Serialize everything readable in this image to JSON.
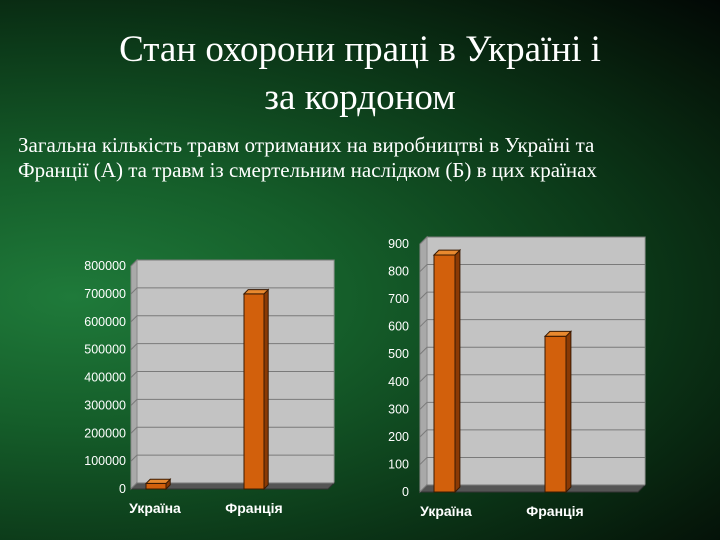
{
  "slide": {
    "title_line1": "Стан охорони праці в Україні і",
    "title_line2": "за кордоном",
    "subtitle_line1": "Загальна кількість травм отриманих на виробництві в Україні та",
    "subtitle_line2": "Франції (А) та травм із смертельним наслідком (Б) в цих країнах"
  },
  "colors": {
    "bar": "#d2600c",
    "bar_top": "#e8892f",
    "bar_side": "#8a3a05",
    "wall": "#c3c3c3",
    "floor": "#555555"
  },
  "chart_data": [
    {
      "type": "bar",
      "categories": [
        "Україна",
        "Франція"
      ],
      "values": [
        20000,
        700000
      ],
      "ylim": [
        0,
        800000
      ],
      "yticks": [
        "0",
        "100000",
        "200000",
        "300000",
        "400000",
        "500000",
        "600000",
        "700000",
        "800000"
      ],
      "title": "",
      "xlabel": "",
      "ylabel": "",
      "grid": true,
      "legend": "none"
    },
    {
      "type": "bar",
      "categories": [
        "Україна",
        "Франція"
      ],
      "values": [
        860,
        565
      ],
      "ylim": [
        0,
        900
      ],
      "yticks": [
        "0",
        "100",
        "200",
        "300",
        "400",
        "500",
        "600",
        "700",
        "800",
        "900"
      ],
      "title": "",
      "xlabel": "",
      "ylabel": "",
      "grid": true,
      "legend": "none"
    }
  ]
}
